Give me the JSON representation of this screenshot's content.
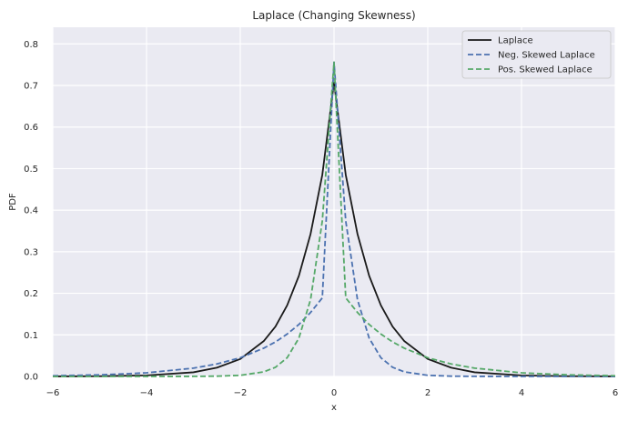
{
  "chart_data": {
    "type": "line",
    "title": "Laplace (Changing Skewness)",
    "xlabel": "x",
    "ylabel": "PDF",
    "xlim": [
      -6,
      6
    ],
    "ylim": [
      0,
      0.84
    ],
    "xticks": [
      -6,
      -4,
      -2,
      0,
      2,
      4,
      6
    ],
    "xtick_labels": [
      "−6",
      "−4",
      "−2",
      "0",
      "2",
      "4",
      "6"
    ],
    "yticks": [
      0.0,
      0.1,
      0.2,
      0.3,
      0.4,
      0.5,
      0.6,
      0.7,
      0.8
    ],
    "ytick_labels": [
      "0.0",
      "0.1",
      "0.2",
      "0.3",
      "0.4",
      "0.5",
      "0.6",
      "0.7",
      "0.8"
    ],
    "grid": true,
    "legend_position": "top-right",
    "series": [
      {
        "name": "Laplace",
        "color": "#1a1a1a",
        "style": "solid",
        "x": [
          -6,
          -5,
          -4,
          -3,
          -2.5,
          -2,
          -1.5,
          -1.25,
          -1,
          -0.75,
          -0.5,
          -0.25,
          0,
          0.25,
          0.5,
          0.75,
          1,
          1.25,
          1.5,
          2,
          2.5,
          3,
          4,
          5,
          6
        ],
        "y": [
          0.0001,
          0.0006,
          0.0025,
          0.01,
          0.021,
          0.042,
          0.085,
          0.12,
          0.171,
          0.242,
          0.343,
          0.485,
          0.707,
          0.485,
          0.343,
          0.242,
          0.171,
          0.12,
          0.085,
          0.042,
          0.021,
          0.01,
          0.0025,
          0.0006,
          0.0001
        ]
      },
      {
        "name": "Neg. Skewed Laplace",
        "color": "#4c72b0",
        "style": "dashed",
        "x": [
          -6,
          -5,
          -4,
          -3,
          -2.5,
          -2,
          -1.5,
          -1.25,
          -1,
          -0.75,
          -0.5,
          -0.25,
          0,
          0.25,
          0.5,
          0.75,
          1,
          1.25,
          1.5,
          2,
          2.5,
          3,
          4,
          5,
          6
        ],
        "y": [
          0.0017,
          0.0038,
          0.0087,
          0.02,
          0.03,
          0.045,
          0.068,
          0.083,
          0.102,
          0.125,
          0.154,
          0.189,
          0.756,
          0.374,
          0.185,
          0.092,
          0.045,
          0.022,
          0.011,
          0.0027,
          0.0007,
          0.0002,
          0.0,
          0.0,
          0.0
        ]
      },
      {
        "name": "Pos. Skewed Laplace",
        "color": "#55a868",
        "style": "dashed",
        "x": [
          -6,
          -5,
          -4,
          -3,
          -2.5,
          -2,
          -1.5,
          -1.25,
          -1,
          -0.75,
          -0.5,
          -0.25,
          0,
          0.25,
          0.5,
          0.75,
          1,
          1.25,
          1.5,
          2,
          2.5,
          3,
          4,
          5,
          6
        ],
        "y": [
          0.0,
          0.0,
          0.0,
          0.0002,
          0.0007,
          0.0027,
          0.011,
          0.022,
          0.045,
          0.092,
          0.185,
          0.374,
          0.756,
          0.189,
          0.154,
          0.125,
          0.102,
          0.083,
          0.068,
          0.045,
          0.03,
          0.02,
          0.0087,
          0.0038,
          0.0017
        ]
      }
    ]
  }
}
